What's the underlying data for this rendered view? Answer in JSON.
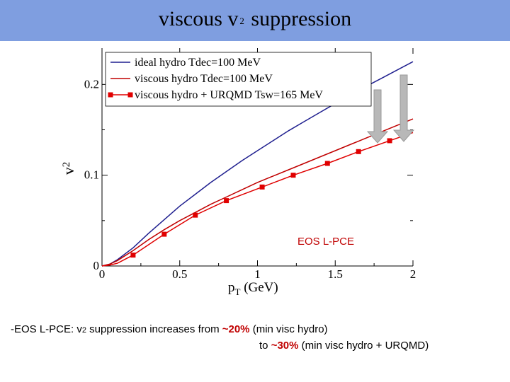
{
  "header": {
    "title_before": "viscous v",
    "title_sub": "2",
    "title_after": " suppression"
  },
  "chart_data": {
    "type": "line",
    "xlabel": "p",
    "xlabel_sub": "T",
    "xlabel_unit": "(GeV)",
    "ylabel": "v",
    "ylabel_sub": "2",
    "xlim": [
      0,
      2
    ],
    "ylim": [
      0,
      0.24
    ],
    "x_ticks": [
      "0",
      "0.5",
      "1",
      "1.5",
      "2"
    ],
    "y_ticks": [
      "0",
      "0.1",
      "0.2"
    ],
    "annotation": "EOS L-PCE",
    "legend_position": "top-left",
    "colors": {
      "ideal": "#1f1f8f",
      "viscous": "#c00000",
      "urqmd": "#e00000",
      "arrow": "#b8b8b8"
    },
    "series": [
      {
        "name": "ideal hydro Tdec=100 MeV",
        "color": "#1f1f8f",
        "marker": "none",
        "x": [
          0,
          0.05,
          0.1,
          0.2,
          0.3,
          0.4,
          0.5,
          0.6,
          0.7,
          0.8,
          0.9,
          1.0,
          1.1,
          1.2,
          1.3,
          1.4,
          1.5,
          1.6,
          1.7,
          1.8,
          1.9,
          2.0
        ],
        "y": [
          0,
          0.002,
          0.007,
          0.02,
          0.036,
          0.051,
          0.066,
          0.079,
          0.092,
          0.104,
          0.116,
          0.127,
          0.138,
          0.149,
          0.159,
          0.169,
          0.179,
          0.189,
          0.198,
          0.207,
          0.216,
          0.225
        ]
      },
      {
        "name": "viscous hydro Tdec=100 MeV",
        "color": "#c00000",
        "marker": "none",
        "x": [
          0,
          0.05,
          0.1,
          0.2,
          0.3,
          0.4,
          0.5,
          0.6,
          0.7,
          0.8,
          0.9,
          1.0,
          1.1,
          1.2,
          1.3,
          1.4,
          1.5,
          1.6,
          1.7,
          1.8,
          1.9,
          2.0
        ],
        "y": [
          0,
          0.002,
          0.006,
          0.017,
          0.029,
          0.04,
          0.05,
          0.059,
          0.068,
          0.076,
          0.084,
          0.092,
          0.099,
          0.106,
          0.113,
          0.12,
          0.127,
          0.134,
          0.141,
          0.148,
          0.155,
          0.162
        ]
      },
      {
        "name": "viscous hydro + URQMD Tsw=165 MeV",
        "color": "#e00000",
        "marker": "square",
        "x": [
          0,
          0.05,
          0.1,
          0.2,
          0.4,
          0.6,
          0.8,
          1.03,
          1.23,
          1.45,
          1.65,
          1.85,
          2.0
        ],
        "y": [
          0,
          0.001,
          0.003,
          0.012,
          0.035,
          0.056,
          0.072,
          0.087,
          0.1,
          0.113,
          0.126,
          0.138,
          0.147
        ]
      }
    ]
  },
  "footer": {
    "line1_prefix": "-EOS L-PCE:  ",
    "line1_v": "v",
    "line1_sub": "2",
    "line1_mid": " suppression increases from  ",
    "line1_pct": "~20%",
    "line1_suffix": "  (min visc  hydro)",
    "line2_prefix": "to  ",
    "line2_pct": "~30%",
    "line2_suffix": "  (min visc hydro + URQMD)"
  }
}
